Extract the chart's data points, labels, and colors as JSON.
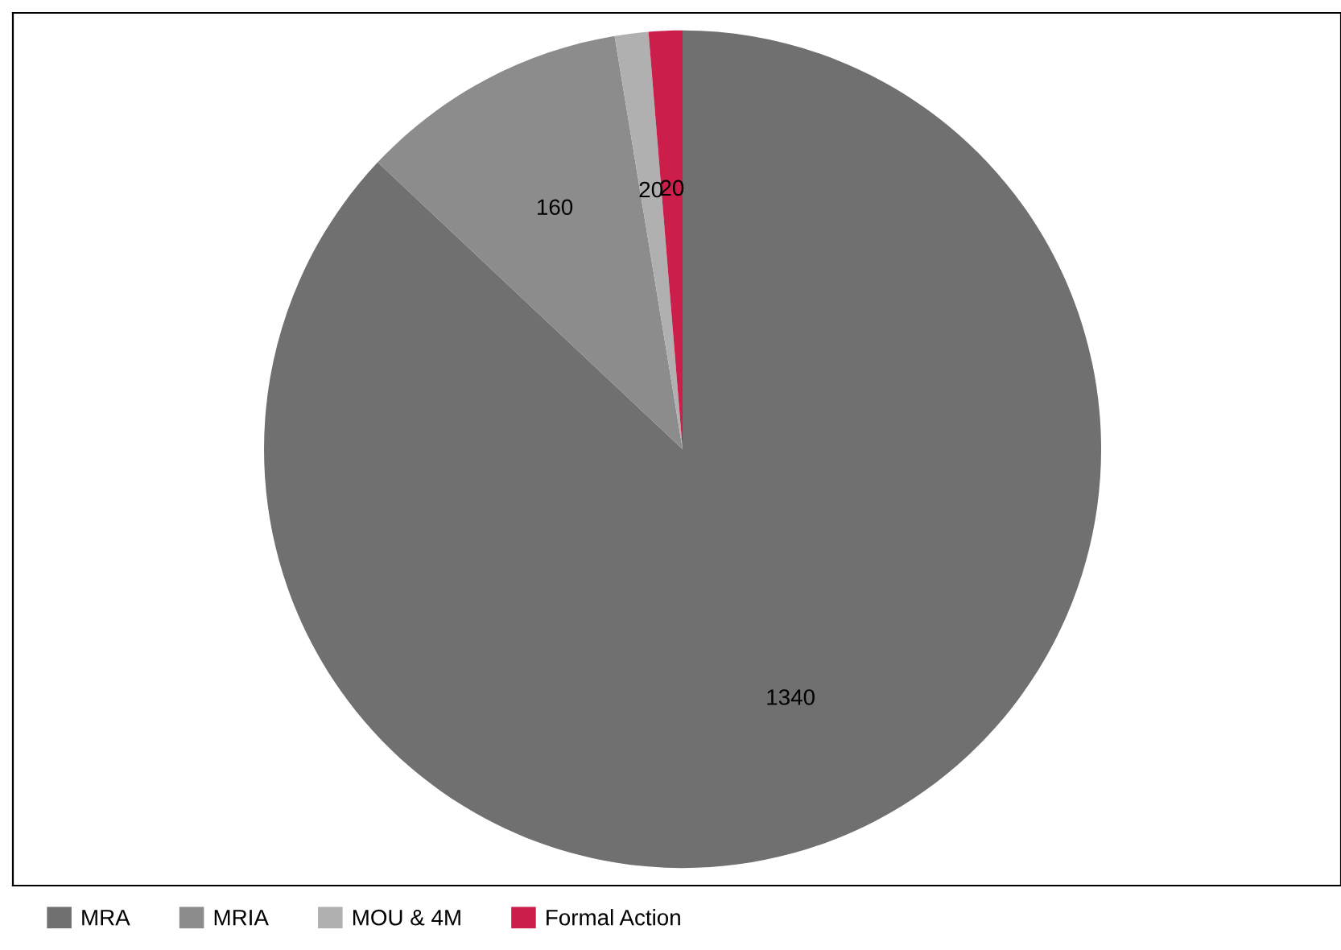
{
  "chart_data": {
    "type": "pie",
    "categories": [
      "MRA",
      "MRIA",
      "MOU & 4M",
      "Formal Action"
    ],
    "values": [
      1340,
      160,
      20,
      20
    ],
    "colors": [
      "#707070",
      "#8c8c8c",
      "#b0b0b0",
      "#cc1e4a"
    ],
    "data_labels": true,
    "legend": "bottom"
  }
}
